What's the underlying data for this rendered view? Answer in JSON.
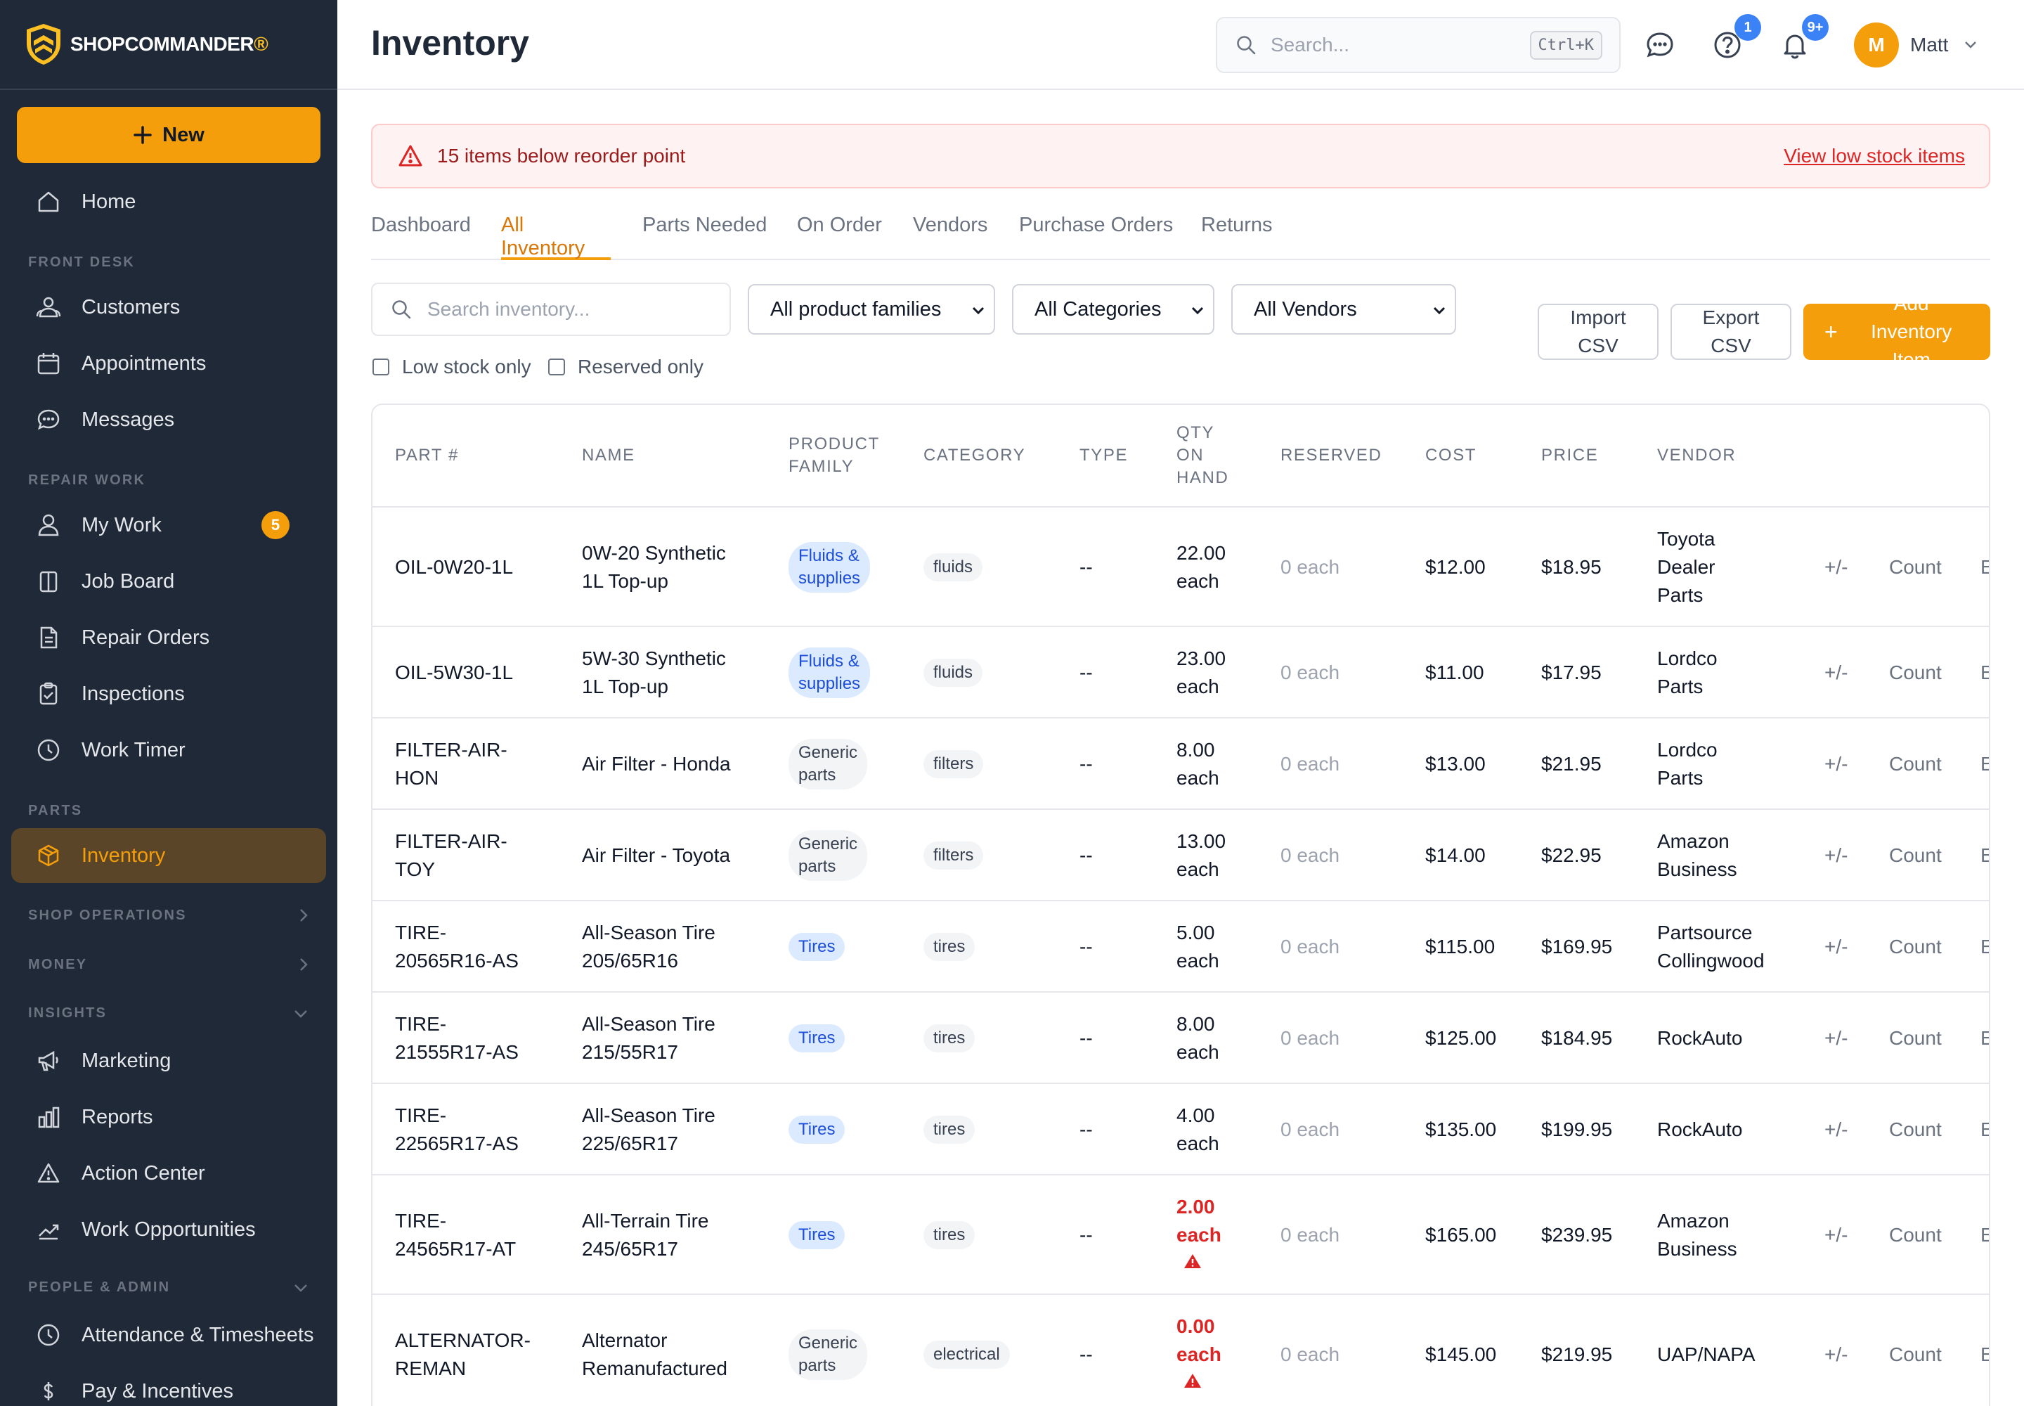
{
  "brand": {
    "name_part1": "SHOP",
    "name_part2": "COMMANDER",
    "mark": "®"
  },
  "sidebar": {
    "new_label": "New",
    "home": "Home",
    "sections": {
      "front_desk": "FRONT DESK",
      "repair_work": "REPAIR WORK",
      "parts": "PARTS",
      "shop_operations": "SHOP OPERATIONS",
      "money": "MONEY",
      "insights": "INSIGHTS",
      "people_admin": "PEOPLE & ADMIN"
    },
    "items": {
      "customers": "Customers",
      "appointments": "Appointments",
      "messages": "Messages",
      "my_work": "My Work",
      "my_work_badge": "5",
      "job_board": "Job Board",
      "repair_orders": "Repair Orders",
      "inspections": "Inspections",
      "work_timer": "Work Timer",
      "inventory": "Inventory",
      "marketing": "Marketing",
      "reports": "Reports",
      "action_center": "Action Center",
      "work_opportunities": "Work Opportunities",
      "attendance": "Attendance & Timesheets",
      "pay": "Pay & Incentives"
    }
  },
  "header": {
    "title": "Inventory",
    "search_placeholder": "Search...",
    "shortcut": "Ctrl+K",
    "help_badge": "1",
    "notif_badge": "9+",
    "avatar_initial": "M",
    "user_name": "Matt"
  },
  "alert": {
    "message": "15 items below reorder point",
    "link": "View low stock items"
  },
  "tabs": [
    "Dashboard",
    "All Inventory",
    "Parts Needed",
    "On Order",
    "Vendors",
    "Purchase Orders",
    "Returns"
  ],
  "filters": {
    "search_placeholder": "Search inventory...",
    "family": "All product families",
    "category": "All Categories",
    "vendor": "All Vendors",
    "low_stock": "Low stock only",
    "reserved": "Reserved only",
    "import_line1": "Import",
    "import_line2": "CSV",
    "export_line1": "Export",
    "export_line2": "CSV",
    "add_line1": "Add",
    "add_line2": "Inventory",
    "add_line3": "Item"
  },
  "table": {
    "headers": {
      "part": "PART #",
      "name": "NAME",
      "family_1": "PRODUCT",
      "family_2": "FAMILY",
      "category": "CATEGORY",
      "type": "TYPE",
      "qty_1": "QTY",
      "qty_2": "ON",
      "qty_3": "HAND",
      "reserved": "RESERVED",
      "cost": "COST",
      "price": "PRICE",
      "vendor": "VENDOR"
    },
    "actions": {
      "adjust": "+/-",
      "count": "Count",
      "edit": "E"
    },
    "rows": [
      {
        "part": [
          "OIL-0W20-1L"
        ],
        "name": [
          "0W-20 Synthetic",
          "1L Top-up"
        ],
        "family": [
          "Fluids &",
          "supplies"
        ],
        "family_style": "blue",
        "category": "fluids",
        "type": "--",
        "qty": [
          "22.00",
          "each"
        ],
        "low": false,
        "reserved": "0 each",
        "cost": "$12.00",
        "price": "$18.95",
        "vendor": [
          "Toyota",
          "Dealer",
          "Parts"
        ]
      },
      {
        "part": [
          "OIL-5W30-1L"
        ],
        "name": [
          "5W-30 Synthetic",
          "1L Top-up"
        ],
        "family": [
          "Fluids &",
          "supplies"
        ],
        "family_style": "blue",
        "category": "fluids",
        "type": "--",
        "qty": [
          "23.00",
          "each"
        ],
        "low": false,
        "reserved": "0 each",
        "cost": "$11.00",
        "price": "$17.95",
        "vendor": [
          "Lordco",
          "Parts"
        ]
      },
      {
        "part": [
          "FILTER-AIR-",
          "HON"
        ],
        "name": [
          "Air Filter - Honda"
        ],
        "family": [
          "Generic",
          "parts"
        ],
        "family_style": "gray",
        "category": "filters",
        "type": "--",
        "qty": [
          "8.00",
          "each"
        ],
        "low": false,
        "reserved": "0 each",
        "cost": "$13.00",
        "price": "$21.95",
        "vendor": [
          "Lordco",
          "Parts"
        ]
      },
      {
        "part": [
          "FILTER-AIR-",
          "TOY"
        ],
        "name": [
          "Air Filter - Toyota"
        ],
        "family": [
          "Generic",
          "parts"
        ],
        "family_style": "gray",
        "category": "filters",
        "type": "--",
        "qty": [
          "13.00",
          "each"
        ],
        "low": false,
        "reserved": "0 each",
        "cost": "$14.00",
        "price": "$22.95",
        "vendor": [
          "Amazon",
          "Business"
        ]
      },
      {
        "part": [
          "TIRE-",
          "20565R16-AS"
        ],
        "name": [
          "All-Season Tire",
          "205/65R16"
        ],
        "family": [
          "Tires"
        ],
        "family_style": "blue",
        "category": "tires",
        "type": "--",
        "qty": [
          "5.00",
          "each"
        ],
        "low": false,
        "reserved": "0 each",
        "cost": "$115.00",
        "price": "$169.95",
        "vendor": [
          "Partsource",
          "Collingwood"
        ]
      },
      {
        "part": [
          "TIRE-",
          "21555R17-AS"
        ],
        "name": [
          "All-Season Tire",
          "215/55R17"
        ],
        "family": [
          "Tires"
        ],
        "family_style": "blue",
        "category": "tires",
        "type": "--",
        "qty": [
          "8.00",
          "each"
        ],
        "low": false,
        "reserved": "0 each",
        "cost": "$125.00",
        "price": "$184.95",
        "vendor": [
          "RockAuto"
        ]
      },
      {
        "part": [
          "TIRE-",
          "22565R17-AS"
        ],
        "name": [
          "All-Season Tire",
          "225/65R17"
        ],
        "family": [
          "Tires"
        ],
        "family_style": "blue",
        "category": "tires",
        "type": "--",
        "qty": [
          "4.00",
          "each"
        ],
        "low": false,
        "reserved": "0 each",
        "cost": "$135.00",
        "price": "$199.95",
        "vendor": [
          "RockAuto"
        ]
      },
      {
        "part": [
          "TIRE-",
          "24565R17-AT"
        ],
        "name": [
          "All-Terrain Tire",
          "245/65R17"
        ],
        "family": [
          "Tires"
        ],
        "family_style": "blue",
        "category": "tires",
        "type": "--",
        "qty": [
          "2.00",
          "each"
        ],
        "low": true,
        "reserved": "0 each",
        "cost": "$165.00",
        "price": "$239.95",
        "vendor": [
          "Amazon",
          "Business"
        ]
      },
      {
        "part": [
          "ALTERNATOR-",
          "REMAN"
        ],
        "name": [
          "Alternator",
          "Remanufactured"
        ],
        "family": [
          "Generic",
          "parts"
        ],
        "family_style": "gray",
        "category": "electrical",
        "type": "--",
        "qty": [
          "0.00",
          "each"
        ],
        "low": true,
        "reserved": "0 each",
        "cost": "$145.00",
        "price": "$219.95",
        "vendor": [
          "UAP/NAPA"
        ]
      }
    ]
  }
}
